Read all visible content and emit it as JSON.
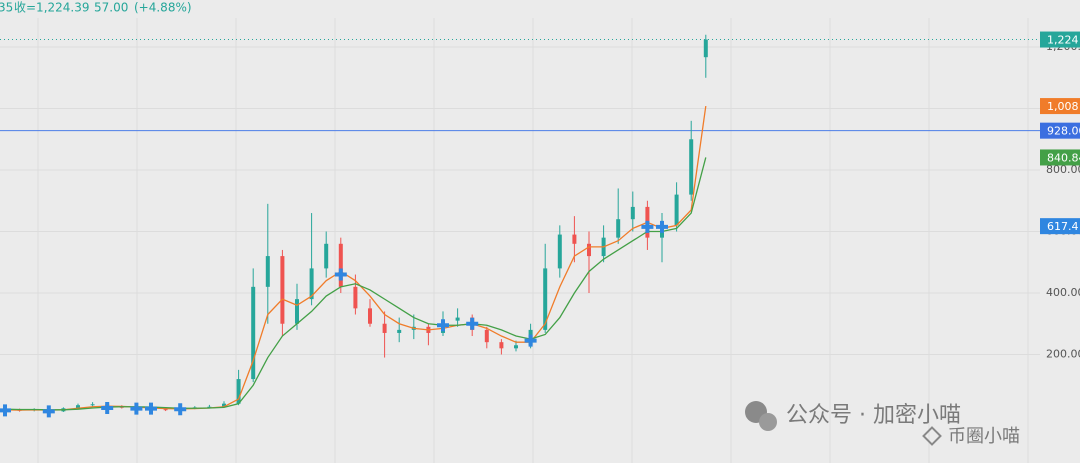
{
  "chart_data": {
    "type": "candlestick",
    "header": {
      "prefix": "35",
      "close_label": "收=1,224.39",
      "change": "57.00",
      "change_pct": "(+4.88%)"
    },
    "ylim": [
      -153,
      1353
    ],
    "yticks": [
      {
        "value": 200,
        "label": "200.00"
      },
      {
        "value": 400,
        "label": "400.00"
      },
      {
        "value": 600,
        "label": "600.00"
      },
      {
        "value": 800,
        "label": "800.00"
      },
      {
        "value": 1000,
        "label": "1,000.00"
      },
      {
        "value": 1200,
        "label": "1,200.00"
      }
    ],
    "grid": true,
    "up_color": "#26a69a",
    "down_color": "#ef5350",
    "open": [
      18,
      20,
      18,
      22,
      15,
      25,
      35,
      38,
      30,
      28,
      25,
      22,
      20,
      25,
      28,
      30,
      40,
      120,
      420,
      520,
      300,
      380,
      480,
      560,
      420,
      350,
      300,
      270,
      280,
      290,
      270,
      310,
      320,
      280,
      240,
      220,
      230,
      280,
      480,
      590,
      560,
      520,
      580,
      640,
      680,
      580,
      620,
      720,
      1167
    ],
    "high": [
      24,
      24,
      25,
      25,
      28,
      40,
      45,
      42,
      35,
      32,
      30,
      26,
      30,
      32,
      36,
      48,
      150,
      480,
      690,
      540,
      430,
      660,
      600,
      580,
      460,
      380,
      340,
      320,
      330,
      300,
      340,
      350,
      330,
      290,
      250,
      245,
      300,
      560,
      620,
      650,
      600,
      620,
      740,
      730,
      700,
      660,
      760,
      960,
      1240
    ],
    "low": [
      14,
      14,
      15,
      12,
      13,
      22,
      30,
      26,
      24,
      22,
      18,
      16,
      18,
      22,
      25,
      28,
      35,
      110,
      300,
      260,
      280,
      360,
      450,
      400,
      330,
      290,
      190,
      240,
      250,
      230,
      260,
      290,
      260,
      220,
      200,
      210,
      220,
      270,
      450,
      500,
      400,
      500,
      560,
      600,
      540,
      500,
      600,
      700,
      1100
    ],
    "close": [
      20,
      18,
      22,
      15,
      25,
      35,
      38,
      30,
      28,
      25,
      22,
      20,
      25,
      28,
      30,
      40,
      120,
      420,
      520,
      300,
      380,
      480,
      560,
      420,
      350,
      300,
      270,
      280,
      290,
      270,
      310,
      320,
      280,
      240,
      220,
      230,
      280,
      480,
      590,
      560,
      520,
      580,
      640,
      680,
      580,
      620,
      720,
      900,
      1224.39
    ],
    "series": [
      {
        "color": "#f07c2a",
        "values": [
          20,
          19,
          20,
          19,
          20,
          25,
          30,
          32,
          31,
          29,
          26,
          24,
          23,
          24,
          26,
          30,
          55,
          180,
          330,
          380,
          360,
          390,
          440,
          470,
          440,
          390,
          330,
          300,
          285,
          280,
          285,
          295,
          300,
          285,
          260,
          240,
          240,
          300,
          420,
          520,
          550,
          550,
          570,
          610,
          630,
          610,
          620,
          670,
          1008
        ]
      },
      {
        "color": "#43a047",
        "values": [
          22,
          21,
          21,
          20,
          20,
          22,
          26,
          29,
          30,
          30,
          29,
          27,
          25,
          25,
          26,
          28,
          40,
          100,
          190,
          260,
          300,
          340,
          390,
          420,
          430,
          410,
          380,
          350,
          320,
          300,
          295,
          295,
          300,
          295,
          280,
          260,
          250,
          265,
          320,
          400,
          470,
          510,
          540,
          570,
          600,
          600,
          610,
          660,
          840.84
        ]
      }
    ],
    "signals": {
      "candle_index": [
        0,
        3,
        7,
        9,
        10,
        12,
        23,
        30,
        32,
        36,
        44,
        45
      ],
      "values": [
        18,
        15,
        26,
        24,
        24,
        22,
        460,
        295,
        300,
        245,
        615,
        615
      ],
      "color": "#2f86e0"
    },
    "hlines": [
      {
        "value": 928,
        "color": "#4d7ee8",
        "style": "solid"
      },
      {
        "value": 1224.39,
        "color": "#26a69a",
        "style": "dotted"
      }
    ],
    "price_tags": [
      {
        "value": 1224.39,
        "label": "1,224",
        "color": "#26a69a"
      },
      {
        "value": 1008,
        "label": "1,008",
        "color": "#f07c2a"
      },
      {
        "value": 928,
        "label": "928.00",
        "color": "#3b6fe0"
      },
      {
        "value": 840.84,
        "label": "840.84",
        "color": "#43a047"
      },
      {
        "value": 617.4,
        "label": "617.4",
        "color": "#2f86e0"
      }
    ]
  },
  "watermark": {
    "text": "公众号 · 加密小喵",
    "sub": "币圈小喵"
  }
}
